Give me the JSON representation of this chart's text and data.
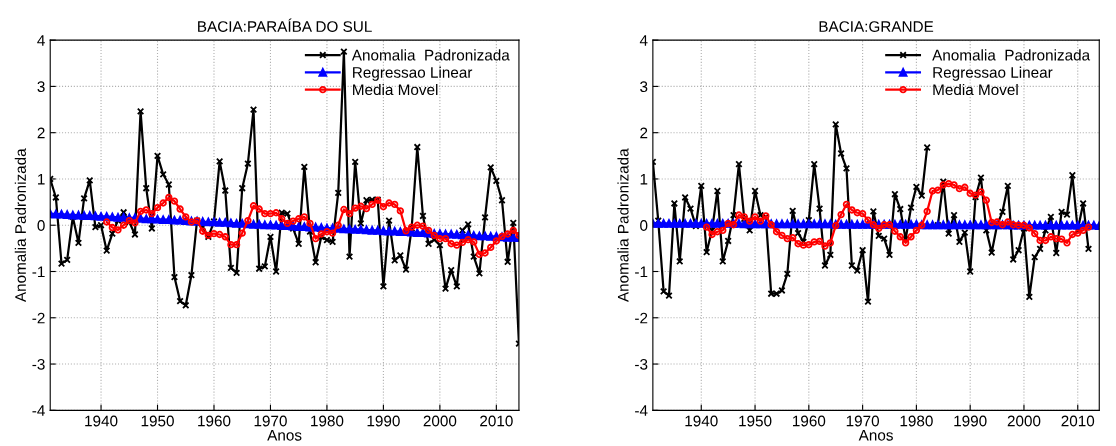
{
  "chart_data": [
    {
      "type": "line",
      "title": "BACIA:PARAÍBA DO SUL",
      "xlabel": "Anos",
      "ylabel": "Anomalia Padronizada",
      "x": [
        1931,
        1932,
        1933,
        1934,
        1935,
        1936,
        1937,
        1938,
        1939,
        1940,
        1941,
        1942,
        1943,
        1944,
        1945,
        1946,
        1947,
        1948,
        1949,
        1950,
        1951,
        1952,
        1953,
        1954,
        1955,
        1956,
        1957,
        1958,
        1959,
        1960,
        1961,
        1962,
        1963,
        1964,
        1965,
        1966,
        1967,
        1968,
        1969,
        1970,
        1971,
        1972,
        1973,
        1974,
        1975,
        1976,
        1977,
        1978,
        1979,
        1980,
        1981,
        1982,
        1983,
        1984,
        1985,
        1986,
        1987,
        1988,
        1989,
        1990,
        1991,
        1992,
        1993,
        1994,
        1995,
        1996,
        1997,
        1998,
        1999,
        2000,
        2001,
        2002,
        2003,
        2004,
        2005,
        2006,
        2007,
        2008,
        2009,
        2010,
        2011,
        2012,
        2013,
        2014
      ],
      "series": [
        {
          "name": "Anomalia  Padronizada",
          "color": "#000000",
          "marker": "cross",
          "values": [
            1.0,
            0.6,
            -0.83,
            -0.75,
            0.18,
            -0.38,
            0.58,
            0.97,
            -0.04,
            0.0,
            -0.55,
            -0.18,
            0.1,
            0.28,
            0.07,
            -0.2,
            2.46,
            0.8,
            -0.07,
            1.5,
            1.1,
            0.88,
            -1.12,
            -1.64,
            -1.73,
            -1.08,
            0.1,
            -0.04,
            -0.25,
            0.08,
            1.38,
            0.75,
            -0.92,
            -1.03,
            0.8,
            1.33,
            2.5,
            -0.94,
            -0.89,
            -0.25,
            -1.0,
            0.27,
            0.25,
            -0.07,
            -0.4,
            1.26,
            -0.14,
            -0.8,
            -0.25,
            -0.32,
            -0.36,
            0.7,
            3.75,
            -0.68,
            1.37,
            0.04,
            0.54,
            0.55,
            0.55,
            -1.32,
            0.1,
            -0.76,
            -0.65,
            -0.96,
            -0.07,
            1.69,
            0.2,
            -0.4,
            -0.31,
            -0.43,
            -1.37,
            -0.97,
            -1.32,
            -0.11,
            0.02,
            -0.68,
            -1.04,
            0.17,
            1.25,
            0.96,
            0.54,
            -0.79,
            0.05,
            -2.56
          ]
        },
        {
          "name": "Regressao Linear",
          "color": "#0000ff",
          "marker": "triangle",
          "values": [
            0.25,
            0.24,
            0.24,
            0.23,
            0.22,
            0.22,
            0.21,
            0.21,
            0.2,
            0.19,
            0.19,
            0.18,
            0.17,
            0.17,
            0.16,
            0.16,
            0.15,
            0.14,
            0.14,
            0.13,
            0.12,
            0.12,
            0.11,
            0.11,
            0.1,
            0.09,
            0.09,
            0.08,
            0.07,
            0.07,
            0.06,
            0.06,
            0.05,
            0.04,
            0.04,
            0.03,
            0.02,
            0.02,
            0.01,
            0.01,
            0.0,
            -0.01,
            -0.01,
            -0.02,
            -0.03,
            -0.03,
            -0.04,
            -0.04,
            -0.05,
            -0.06,
            -0.06,
            -0.07,
            -0.08,
            -0.08,
            -0.09,
            -0.09,
            -0.1,
            -0.11,
            -0.11,
            -0.12,
            -0.13,
            -0.13,
            -0.14,
            -0.14,
            -0.15,
            -0.16,
            -0.16,
            -0.17,
            -0.18,
            -0.18,
            -0.19,
            -0.19,
            -0.2,
            -0.21,
            -0.21,
            -0.22,
            -0.23,
            -0.23,
            -0.24,
            -0.24,
            -0.25,
            -0.26,
            -0.26,
            -0.27
          ]
        },
        {
          "name": "Media Movel",
          "color": "#ff0000",
          "marker": "circle",
          "values": [
            null,
            null,
            null,
            null,
            null,
            null,
            null,
            null,
            null,
            null,
            0.07,
            -0.05,
            -0.1,
            0.0,
            0.1,
            0.05,
            0.3,
            0.33,
            0.25,
            0.38,
            0.48,
            0.6,
            0.52,
            0.35,
            0.18,
            0.07,
            0.1,
            -0.13,
            -0.22,
            -0.18,
            -0.2,
            -0.25,
            -0.42,
            -0.42,
            -0.17,
            0.1,
            0.42,
            0.35,
            0.25,
            0.25,
            0.27,
            0.14,
            0.04,
            0.09,
            0.14,
            0.18,
            0.04,
            -0.29,
            -0.19,
            -0.14,
            -0.17,
            0.0,
            0.34,
            0.25,
            0.37,
            0.41,
            0.36,
            0.45,
            0.54,
            0.4,
            0.48,
            0.45,
            0.31,
            -0.12,
            -0.04,
            0.0,
            -0.02,
            -0.11,
            -0.22,
            -0.29,
            -0.29,
            -0.4,
            -0.43,
            -0.37,
            -0.31,
            -0.36,
            -0.63,
            -0.6,
            -0.48,
            -0.34,
            -0.24,
            -0.19,
            -0.11,
            -0.22
          ]
        }
      ],
      "xlim": [
        1931,
        2014
      ],
      "xticks": [
        1940,
        1950,
        1960,
        1970,
        1980,
        1990,
        2000,
        2010
      ],
      "ylim": [
        -4,
        4
      ],
      "yticks": [
        -4,
        -3,
        -2,
        -1,
        0,
        1,
        2,
        3,
        4
      ],
      "grid": true,
      "legend": "top right",
      "line_style": "solid"
    },
    {
      "type": "line",
      "title": "BACIA:GRANDE",
      "xlabel": "Anos",
      "ylabel": "Anomalia Padronizada",
      "x": [
        1931,
        1932,
        1933,
        1934,
        1935,
        1936,
        1937,
        1938,
        1939,
        1940,
        1941,
        1942,
        1943,
        1944,
        1945,
        1946,
        1947,
        1948,
        1949,
        1950,
        1951,
        1952,
        1953,
        1954,
        1955,
        1956,
        1957,
        1958,
        1959,
        1960,
        1961,
        1962,
        1963,
        1964,
        1965,
        1966,
        1967,
        1968,
        1969,
        1970,
        1971,
        1972,
        1973,
        1974,
        1975,
        1976,
        1977,
        1978,
        1979,
        1980,
        1981,
        1982,
        1983,
        1984,
        1985,
        1986,
        1987,
        1988,
        1989,
        1990,
        1991,
        1992,
        1993,
        1994,
        1995,
        1996,
        1997,
        1998,
        1999,
        2000,
        2001,
        2002,
        2003,
        2004,
        2005,
        2006,
        2007,
        2008,
        2009,
        2010,
        2011,
        2012,
        2013,
        2014
      ],
      "series": [
        {
          "name": "Anomalia  Padronizada",
          "color": "#000000",
          "marker": "cross",
          "values": [
            1.37,
            0.1,
            -1.43,
            -1.52,
            0.47,
            -0.78,
            0.6,
            0.36,
            -0.02,
            0.85,
            -0.58,
            -0.11,
            0.74,
            -0.78,
            -0.34,
            0.22,
            1.32,
            0.14,
            -0.11,
            0.74,
            0.22,
            0.18,
            -1.48,
            -1.48,
            -1.41,
            -1.05,
            0.31,
            -0.17,
            -0.36,
            0.11,
            1.32,
            0.36,
            -0.87,
            -0.64,
            2.18,
            1.55,
            1.23,
            -0.87,
            -0.98,
            -0.54,
            -1.65,
            0.3,
            -0.23,
            -0.29,
            -0.64,
            0.67,
            0.35,
            -0.3,
            0.38,
            0.83,
            0.64,
            1.68,
            null,
            0.0,
            0.94,
            -0.18,
            0.22,
            -0.36,
            -0.16,
            -1.0,
            0.61,
            1.03,
            -0.11,
            -0.59,
            0.0,
            0.29,
            0.85,
            -0.74,
            -0.54,
            -0.07,
            -1.55,
            -0.69,
            -0.51,
            -0.11,
            0.18,
            -0.6,
            0.29,
            0.23,
            1.08,
            -0.11,
            0.47,
            -0.51,
            null,
            null
          ]
        },
        {
          "name": "Regressao Linear",
          "color": "#0000ff",
          "marker": "triangle",
          "values": [
            0.04,
            0.04,
            0.04,
            0.04,
            0.04,
            0.04,
            0.04,
            0.04,
            0.04,
            0.04,
            0.04,
            0.04,
            0.04,
            0.04,
            0.04,
            0.04,
            0.04,
            0.03,
            0.03,
            0.03,
            0.03,
            0.03,
            0.03,
            0.03,
            0.03,
            0.03,
            0.03,
            0.03,
            0.03,
            0.03,
            0.03,
            0.03,
            0.03,
            0.03,
            0.02,
            0.02,
            0.02,
            0.02,
            0.02,
            0.02,
            0.02,
            0.02,
            0.02,
            0.02,
            0.02,
            0.02,
            0.02,
            0.02,
            0.02,
            0.02,
            0.01,
            0.01,
            0.01,
            0.01,
            0.01,
            0.01,
            0.01,
            0.01,
            0.01,
            0.01,
            0.01,
            0.01,
            0.01,
            0.01,
            0.01,
            0.01,
            0.01,
            0.0,
            0.0,
            0.0,
            0.0,
            0.0,
            0.0,
            0.0,
            0.0,
            0.0,
            0.0,
            0.0,
            0.0,
            0.0,
            0.0,
            0.0,
            0.0,
            -0.01
          ]
        },
        {
          "name": "Media Movel",
          "color": "#ff0000",
          "marker": "circle",
          "values": [
            null,
            null,
            null,
            null,
            null,
            null,
            null,
            null,
            null,
            null,
            -0.04,
            -0.2,
            -0.14,
            -0.11,
            0.04,
            0.01,
            0.22,
            0.18,
            0.09,
            0.18,
            0.09,
            0.2,
            0.01,
            -0.14,
            -0.22,
            -0.29,
            -0.27,
            -0.4,
            -0.43,
            -0.42,
            -0.36,
            -0.35,
            -0.45,
            -0.38,
            -0.01,
            0.23,
            0.45,
            0.33,
            0.27,
            0.25,
            0.11,
            0.01,
            -0.07,
            0.01,
            0.01,
            -0.13,
            -0.25,
            -0.38,
            -0.25,
            -0.11,
            0.0,
            0.3,
            0.74,
            0.76,
            0.87,
            0.9,
            0.87,
            0.79,
            0.82,
            0.69,
            0.65,
            0.72,
            0.54,
            0.06,
            0.07,
            0.01,
            0.07,
            0.01,
            0.0,
            0.0,
            -0.06,
            -0.18,
            -0.33,
            -0.33,
            -0.25,
            -0.29,
            -0.3,
            -0.38,
            -0.2,
            -0.17,
            -0.11,
            -0.04,
            null,
            null
          ]
        }
      ],
      "xlim": [
        1931,
        2014
      ],
      "xticks": [
        1940,
        1950,
        1960,
        1970,
        1980,
        1990,
        2000,
        2010
      ],
      "ylim": [
        -4,
        4
      ],
      "yticks": [
        -4,
        -3,
        -2,
        -1,
        0,
        1,
        2,
        3,
        4
      ],
      "grid": true,
      "legend": "top right",
      "line_style": "solid"
    }
  ]
}
